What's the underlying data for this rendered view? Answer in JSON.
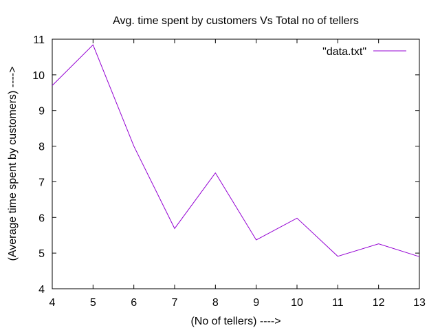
{
  "chart_data": {
    "type": "line",
    "title": "Avg. time spent by customers Vs Total no of tellers",
    "xlabel": "(No of tellers) ---->",
    "ylabel": "(Average time spent by customers) ---->",
    "xlim": [
      4,
      13
    ],
    "ylim": [
      4,
      11
    ],
    "xticks": [
      "4",
      "5",
      "6",
      "7",
      "8",
      "9",
      "10",
      "11",
      "12",
      "13"
    ],
    "yticks": [
      "4",
      "5",
      "6",
      "7",
      "8",
      "9",
      "10",
      "11"
    ],
    "grid": false,
    "legend_position": "top-right",
    "series": [
      {
        "name": "\"data.txt\"",
        "color": "#9400d3",
        "x": [
          4,
          5,
          6,
          7,
          8,
          9,
          10,
          11,
          12,
          13
        ],
        "y": [
          9.7,
          10.84,
          8.0,
          5.69,
          7.25,
          5.37,
          5.98,
          4.91,
          5.26,
          4.9
        ]
      }
    ]
  }
}
